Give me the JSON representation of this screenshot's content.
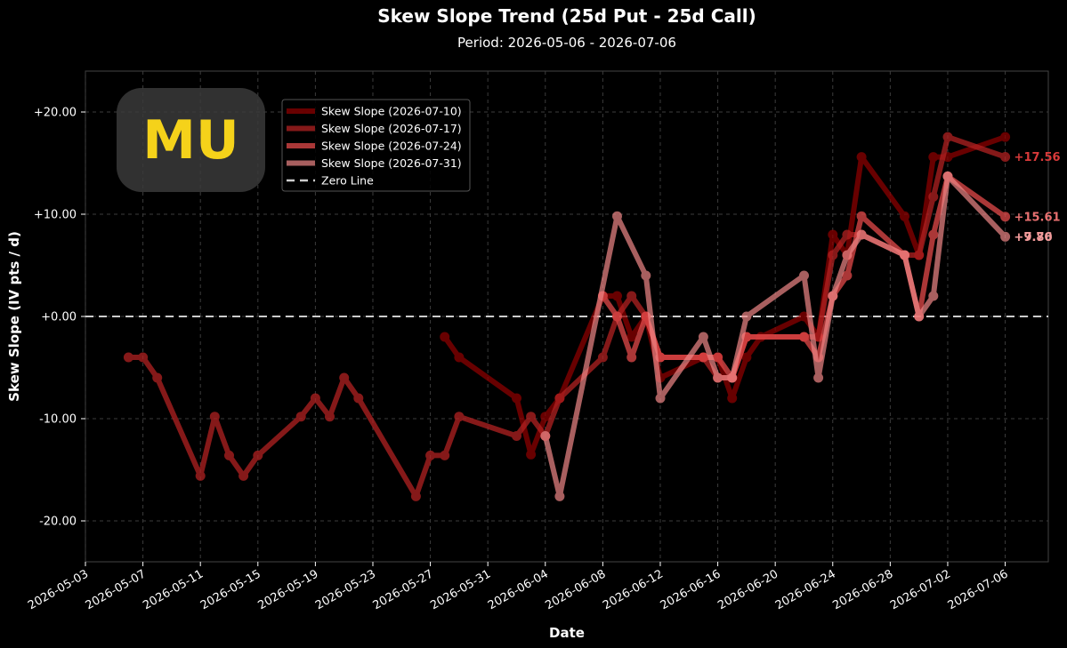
{
  "chart_data": {
    "type": "line",
    "title": "Skew Slope Trend (25d Put - 25d Call)",
    "subtitle": "Period: 2026-05-06 - 2026-07-06",
    "xlabel": "Date",
    "ylabel": "Skew Slope (IV pts / d)",
    "ylim": [
      -24,
      24
    ],
    "xlim": [
      "2026-05-03",
      "2026-07-09"
    ],
    "grid": true,
    "legend_position": "upper-left",
    "ticker_badge": "MU",
    "x_ticks": [
      "2026-05-03",
      "2026-05-07",
      "2026-05-11",
      "2026-05-15",
      "2026-05-19",
      "2026-05-23",
      "2026-05-27",
      "2026-05-31",
      "2026-06-04",
      "2026-06-08",
      "2026-06-12",
      "2026-06-16",
      "2026-06-20",
      "2026-06-24",
      "2026-06-28",
      "2026-07-02",
      "2026-07-06"
    ],
    "y_ticks": [
      {
        "value": 20,
        "label": "+20.00"
      },
      {
        "value": 10,
        "label": "+10.00"
      },
      {
        "value": 0,
        "label": "+0.00"
      },
      {
        "value": -10,
        "label": "-10.00"
      },
      {
        "value": -20,
        "label": "-20.00"
      }
    ],
    "zero_line": {
      "name": "Zero Line",
      "value": 0,
      "color": "#cccccc"
    },
    "series": [
      {
        "name": "Skew Slope (2026-07-10)",
        "color": "#8b0000",
        "opacity": 0.75,
        "end_label": "",
        "points": [
          [
            "2026-05-28",
            -2
          ],
          [
            "2026-05-29",
            -4
          ],
          [
            "2026-06-02",
            -8
          ],
          [
            "2026-06-03",
            -13.5
          ],
          [
            "2026-06-04",
            -9.8
          ],
          [
            "2026-06-05",
            -8
          ],
          [
            "2026-06-08",
            2
          ],
          [
            "2026-06-09",
            2
          ],
          [
            "2026-06-10",
            -2
          ],
          [
            "2026-06-11",
            0
          ],
          [
            "2026-06-12",
            -6
          ],
          [
            "2026-06-15",
            -4
          ],
          [
            "2026-06-16",
            -4
          ],
          [
            "2026-06-17",
            -8
          ],
          [
            "2026-06-18",
            -4
          ],
          [
            "2026-06-19",
            -2
          ],
          [
            "2026-06-22",
            0
          ],
          [
            "2026-06-23",
            -2
          ],
          [
            "2026-06-24",
            8
          ],
          [
            "2026-06-25",
            6
          ],
          [
            "2026-06-26",
            15.6
          ],
          [
            "2026-06-29",
            9.8
          ],
          [
            "2026-06-30",
            6
          ],
          [
            "2026-07-01",
            15.6
          ],
          [
            "2026-07-02",
            15.6
          ],
          [
            "2026-07-06",
            17.56
          ]
        ]
      },
      {
        "name": "Skew Slope (2026-07-17)",
        "color": "#b22222",
        "opacity": 0.75,
        "end_label": "+17.56",
        "points": [
          [
            "2026-05-06",
            -4
          ],
          [
            "2026-05-07",
            -4
          ],
          [
            "2026-05-08",
            -6
          ],
          [
            "2026-05-11",
            -15.6
          ],
          [
            "2026-05-12",
            -9.8
          ],
          [
            "2026-05-13",
            -13.6
          ],
          [
            "2026-05-14",
            -15.6
          ],
          [
            "2026-05-15",
            -13.6
          ],
          [
            "2026-05-18",
            -9.8
          ],
          [
            "2026-05-19",
            -8
          ],
          [
            "2026-05-20",
            -9.8
          ],
          [
            "2026-05-21",
            -6
          ],
          [
            "2026-05-22",
            -8
          ],
          [
            "2026-05-26",
            -17.6
          ],
          [
            "2026-05-27",
            -13.6
          ],
          [
            "2026-05-28",
            -13.6
          ],
          [
            "2026-05-29",
            -9.8
          ],
          [
            "2026-06-02",
            -11.7
          ],
          [
            "2026-06-03",
            -9.8
          ],
          [
            "2026-06-04",
            -11.7
          ],
          [
            "2026-06-05",
            -8
          ],
          [
            "2026-06-08",
            -4
          ],
          [
            "2026-06-09",
            0
          ],
          [
            "2026-06-10",
            2
          ],
          [
            "2026-06-11",
            0
          ],
          [
            "2026-06-12",
            -4
          ],
          [
            "2026-06-15",
            -4
          ],
          [
            "2026-06-16",
            -6
          ],
          [
            "2026-06-17",
            -6
          ],
          [
            "2026-06-18",
            -2
          ],
          [
            "2026-06-22",
            -2
          ],
          [
            "2026-06-23",
            -2
          ],
          [
            "2026-06-24",
            6
          ],
          [
            "2026-06-25",
            8
          ],
          [
            "2026-06-26",
            8
          ],
          [
            "2026-06-29",
            6
          ],
          [
            "2026-06-30",
            6
          ],
          [
            "2026-07-01",
            11.7
          ],
          [
            "2026-07-02",
            17.56
          ],
          [
            "2026-07-06",
            15.61
          ]
        ]
      },
      {
        "name": "Skew Slope (2026-07-24)",
        "color": "#e34a4a",
        "opacity": 0.75,
        "end_label": "+15.61",
        "points": [
          [
            "2026-06-08",
            2
          ],
          [
            "2026-06-09",
            0
          ],
          [
            "2026-06-10",
            -4
          ],
          [
            "2026-06-11",
            0
          ],
          [
            "2026-06-12",
            -4
          ],
          [
            "2026-06-15",
            -4
          ],
          [
            "2026-06-16",
            -4
          ],
          [
            "2026-06-17",
            -6
          ],
          [
            "2026-06-18",
            -2
          ],
          [
            "2026-06-22",
            -2
          ],
          [
            "2026-06-23",
            -4
          ],
          [
            "2026-06-24",
            2
          ],
          [
            "2026-06-25",
            4
          ],
          [
            "2026-06-26",
            9.8
          ],
          [
            "2026-06-29",
            6
          ],
          [
            "2026-06-30",
            0
          ],
          [
            "2026-07-01",
            8
          ],
          [
            "2026-07-02",
            13.7
          ],
          [
            "2026-07-06",
            9.76
          ]
        ]
      },
      {
        "name": "Skew Slope (2026-07-31)",
        "color": "#f08888",
        "opacity": 0.7,
        "end_label": "+9.76",
        "points": [
          [
            "2026-06-04",
            -11.7
          ],
          [
            "2026-06-05",
            -17.6
          ],
          [
            "2026-06-09",
            9.8
          ],
          [
            "2026-06-11",
            4
          ],
          [
            "2026-06-12",
            -8
          ],
          [
            "2026-06-15",
            -2
          ],
          [
            "2026-06-16",
            -6
          ],
          [
            "2026-06-17",
            -6
          ],
          [
            "2026-06-18",
            0
          ],
          [
            "2026-06-22",
            4
          ],
          [
            "2026-06-23",
            -6
          ],
          [
            "2026-06-24",
            2
          ],
          [
            "2026-06-25",
            6
          ],
          [
            "2026-06-26",
            8
          ],
          [
            "2026-06-29",
            6
          ],
          [
            "2026-06-30",
            0
          ],
          [
            "2026-07-01",
            2
          ],
          [
            "2026-07-02",
            13.7
          ],
          [
            "2026-07-06",
            7.8
          ]
        ]
      }
    ],
    "extra_end_label": {
      "text": "+7.80",
      "value": 7.8,
      "color": "#f08888"
    }
  }
}
